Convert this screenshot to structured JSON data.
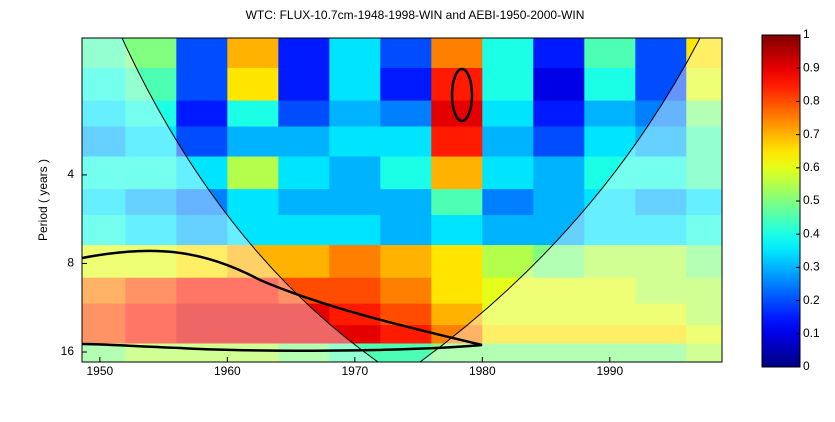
{
  "chart_data": {
    "type": "heatmap",
    "title": "WTC: FLUX-10.7cm-1948-1998-WIN  and  AEBI-1950-2000-WIN",
    "y_label": "Period ( years )",
    "x": [
      1950,
      1954,
      1958,
      1962,
      1966,
      1970,
      1974,
      1978,
      1982,
      1986,
      1990,
      1994,
      1998
    ],
    "periods": [
      1.5,
      2,
      2.5,
      3,
      4,
      5,
      6,
      8,
      10,
      12,
      14,
      16
    ],
    "values": [
      [
        0.45,
        0.5,
        0.2,
        0.7,
        0.15,
        0.35,
        0.2,
        0.75,
        0.4,
        0.15,
        0.45,
        0.2,
        0.65
      ],
      [
        0.4,
        0.45,
        0.2,
        0.65,
        0.15,
        0.35,
        0.15,
        0.85,
        0.4,
        0.1,
        0.4,
        0.2,
        0.6
      ],
      [
        0.35,
        0.4,
        0.15,
        0.4,
        0.2,
        0.3,
        0.25,
        0.9,
        0.35,
        0.15,
        0.3,
        0.25,
        0.5
      ],
      [
        0.3,
        0.35,
        0.2,
        0.3,
        0.3,
        0.35,
        0.35,
        0.85,
        0.3,
        0.2,
        0.35,
        0.3,
        0.45
      ],
      [
        0.4,
        0.4,
        0.35,
        0.55,
        0.35,
        0.3,
        0.4,
        0.7,
        0.35,
        0.3,
        0.4,
        0.4,
        0.45
      ],
      [
        0.35,
        0.3,
        0.25,
        0.35,
        0.3,
        0.3,
        0.3,
        0.45,
        0.25,
        0.3,
        0.35,
        0.3,
        0.35
      ],
      [
        0.4,
        0.35,
        0.3,
        0.35,
        0.35,
        0.35,
        0.3,
        0.35,
        0.3,
        0.3,
        0.35,
        0.35,
        0.4
      ],
      [
        0.6,
        0.6,
        0.65,
        0.7,
        0.7,
        0.75,
        0.7,
        0.65,
        0.55,
        0.5,
        0.55,
        0.55,
        0.5
      ],
      [
        0.75,
        0.8,
        0.85,
        0.85,
        0.8,
        0.8,
        0.75,
        0.65,
        0.6,
        0.6,
        0.6,
        0.55,
        0.55
      ],
      [
        0.8,
        0.85,
        0.9,
        0.9,
        0.9,
        0.85,
        0.8,
        0.7,
        0.6,
        0.6,
        0.6,
        0.6,
        0.55
      ],
      [
        0.8,
        0.85,
        0.9,
        0.9,
        0.9,
        0.9,
        0.85,
        0.75,
        0.65,
        0.65,
        0.65,
        0.65,
        0.6
      ],
      [
        0.5,
        0.55,
        0.55,
        0.55,
        0.5,
        0.45,
        0.45,
        0.5,
        0.5,
        0.5,
        0.5,
        0.5,
        0.55
      ]
    ],
    "xlim": [
      1948.6,
      1998.8
    ],
    "xticks": [
      1950,
      1960,
      1970,
      1980,
      1990
    ],
    "ylim": [
      1.37,
      17.3
    ],
    "yticks": [
      4,
      8,
      16
    ],
    "y_log": true,
    "y_inverted": true,
    "colormap": "jet",
    "clim": [
      0,
      1
    ],
    "cticks": [
      0,
      0.1,
      0.2,
      0.3,
      0.4,
      0.5,
      0.6,
      0.7,
      0.8,
      0.9,
      1
    ]
  }
}
